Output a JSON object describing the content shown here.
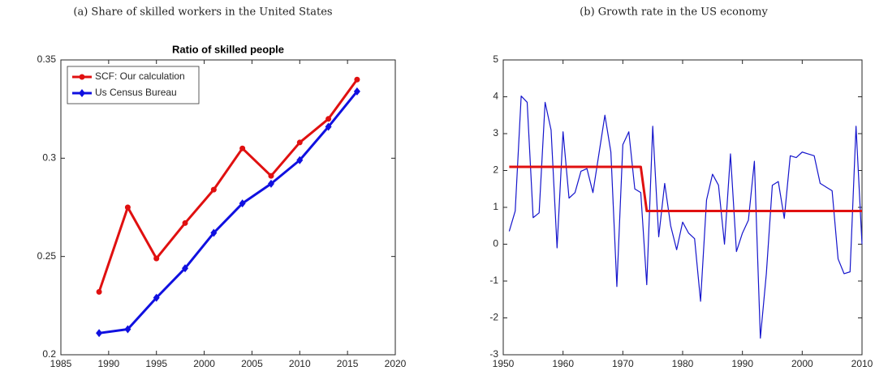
{
  "chart_data": [
    {
      "type": "line",
      "caption": "(a) Share of skilled workers in the United States",
      "title": "Ratio of skilled people",
      "xlim": [
        1985,
        2020
      ],
      "xticks": [
        1985,
        1990,
        1995,
        2000,
        2005,
        2010,
        2015,
        2020
      ],
      "ylim": [
        0.2,
        0.35
      ],
      "yticks": [
        0.2,
        0.25,
        0.3,
        0.35
      ],
      "legend": "upper left",
      "grid": false,
      "series": [
        {
          "name": "SCF: Our calculation",
          "color": "#e01010",
          "marker": "circle",
          "width": 3,
          "x": [
            1989,
            1992,
            1995,
            1998,
            2001,
            2004,
            2007,
            2010,
            2013,
            2016
          ],
          "values": [
            0.232,
            0.275,
            0.249,
            0.267,
            0.284,
            0.305,
            0.291,
            0.308,
            0.32,
            0.34
          ]
        },
        {
          "name": "Us Census Bureau",
          "color": "#1010e0",
          "marker": "diamond",
          "width": 3,
          "x": [
            1989,
            1992,
            1995,
            1998,
            2001,
            2004,
            2007,
            2010,
            2013,
            2016
          ],
          "values": [
            0.211,
            0.213,
            0.229,
            0.244,
            0.262,
            0.277,
            0.287,
            0.299,
            0.316,
            0.334
          ]
        }
      ]
    },
    {
      "type": "line",
      "caption": "(b) Growth rate in the US economy",
      "xlim": [
        1950,
        2010
      ],
      "xticks": [
        1950,
        1960,
        1970,
        1980,
        1990,
        2000,
        2010
      ],
      "ylim": [
        -3,
        5
      ],
      "yticks": [
        -3,
        -2,
        -1,
        0,
        1,
        2,
        3,
        4,
        5
      ],
      "grid": false,
      "series": [
        {
          "color": "#1515cc",
          "width": 1.2,
          "x": [
            1951,
            1952,
            1953,
            1954,
            1955,
            1956,
            1957,
            1958,
            1959,
            1960,
            1961,
            1962,
            1963,
            1964,
            1965,
            1966,
            1967,
            1968,
            1969,
            1970,
            1971,
            1972,
            1973,
            1974,
            1975,
            1976,
            1977,
            1978,
            1979,
            1980,
            1981,
            1982,
            1983,
            1984,
            1985,
            1986,
            1987,
            1988,
            1989,
            1990,
            1991,
            1992,
            1993,
            1994,
            1995,
            1996,
            1997,
            1998,
            1999,
            2000,
            2001,
            2002,
            2003,
            2004,
            2005,
            2006,
            2007,
            2008,
            2009,
            2010
          ],
          "values": [
            0.35,
            0.9,
            4.02,
            3.85,
            0.72,
            0.85,
            3.85,
            3.1,
            -0.1,
            3.05,
            1.25,
            1.4,
            1.98,
            2.05,
            1.4,
            2.45,
            3.5,
            2.5,
            -1.15,
            2.7,
            3.05,
            1.5,
            1.4,
            -1.1,
            3.2,
            0.2,
            1.65,
            0.5,
            -0.15,
            0.6,
            0.3,
            0.15,
            -1.55,
            1.2,
            1.9,
            1.6,
            0.0,
            2.45,
            -0.2,
            0.3,
            0.65,
            2.25,
            -2.55,
            -0.8,
            1.6,
            1.7,
            0.7,
            2.4,
            2.35,
            2.5,
            2.45,
            2.4,
            1.65,
            1.55,
            1.45,
            -0.4,
            -0.8,
            -0.75,
            3.2,
            0.0
          ]
        },
        {
          "color": "#e01010",
          "width": 3,
          "x": [
            1951,
            1973,
            1974,
            2010
          ],
          "values": [
            2.1,
            2.1,
            0.9,
            0.9
          ]
        }
      ]
    }
  ]
}
